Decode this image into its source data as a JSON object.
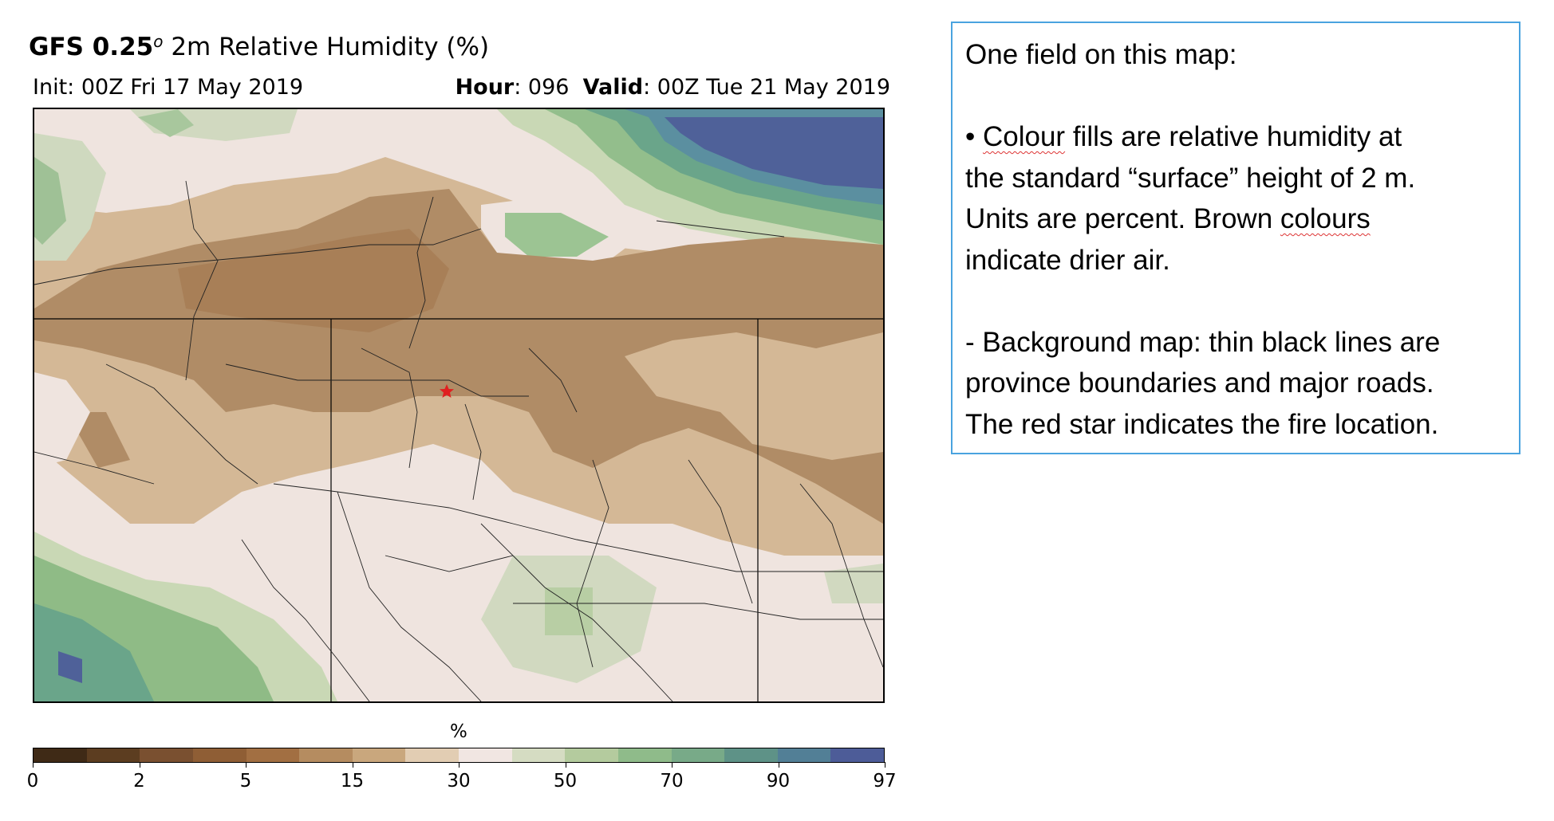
{
  "header": {
    "title_bold": "GFS 0.25",
    "title_degree": "o",
    "title_rest": " 2m Relative Humidity (%)",
    "init": "Init: 00Z Fri 17 May 2019",
    "hour_label": "Hour",
    "hour_value": ": 096",
    "valid_label": "Valid",
    "valid_value": ": 00Z Tue 21 May 2019"
  },
  "map": {
    "field": "2m Relative Humidity",
    "marker": "red-star",
    "marker_color": "#e02020"
  },
  "colorbar": {
    "unit": "%",
    "tick_labels": [
      "0",
      "2",
      "5",
      "15",
      "30",
      "50",
      "70",
      "90",
      "97"
    ],
    "colors": [
      "#3f2a16",
      "#5c3d20",
      "#7a5030",
      "#8f5e35",
      "#a26f42",
      "#b58c60",
      "#c9a77d",
      "#e2cdb3",
      "#f1e6e2",
      "#d5dcc2",
      "#b4cb9e",
      "#8fbb8a",
      "#78aa88",
      "#5e9287",
      "#527f96",
      "#4d5c98"
    ]
  },
  "textbox": {
    "heading": "One field on this map:",
    "p1_line1_pre": "• ",
    "p1_line1_word": "Colour",
    "p1_line1_post": " fills are relative humidity at",
    "p1_line2": "the standard “surface” height of 2 m.",
    "p1_line3_pre": "Units are percent.  Brown ",
    "p1_line3_word": "colours",
    "p1_line4": "indicate drier air.",
    "p2_line1": "- Background map: thin black lines are",
    "p2_line2": "province boundaries and major roads.",
    "p2_line3": "The red star indicates the fire location."
  }
}
